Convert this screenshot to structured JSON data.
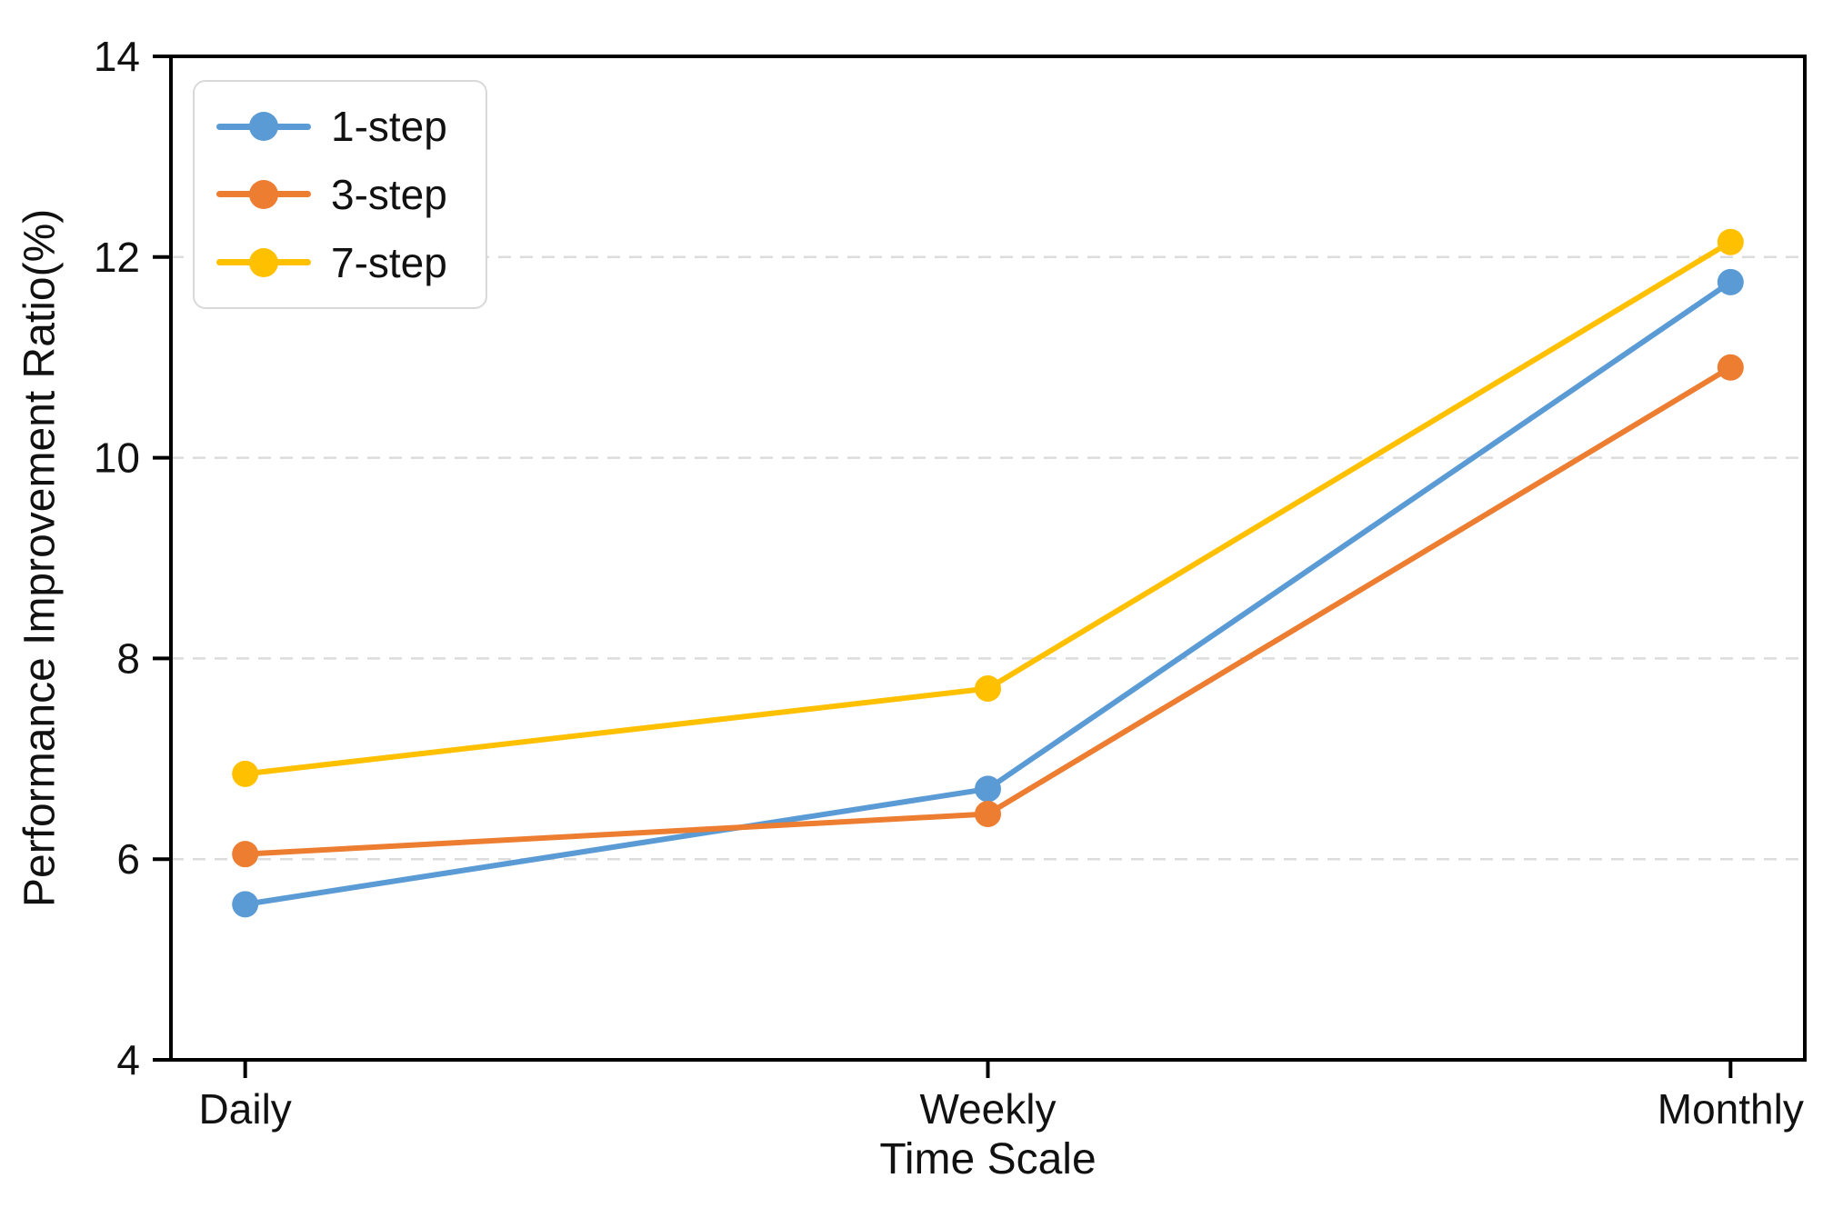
{
  "chart_data": {
    "type": "line",
    "title": "",
    "xlabel": "Time Scale",
    "ylabel": "Performance Improvement Ratio(%)",
    "categories": [
      "Daily",
      "Weekly",
      "Monthly"
    ],
    "series": [
      {
        "name": "1-step",
        "color": "#5B9BD5",
        "values": [
          5.55,
          6.7,
          11.75
        ]
      },
      {
        "name": "3-step",
        "color": "#ED7D31",
        "values": [
          6.05,
          6.45,
          10.9
        ]
      },
      {
        "name": "7-step",
        "color": "#FFC000",
        "values": [
          6.85,
          7.7,
          12.15
        ]
      }
    ],
    "ylim": [
      4,
      14
    ],
    "yticks": [
      4,
      6,
      8,
      10,
      12,
      14
    ],
    "grid": "horizontal-dashed",
    "grid_color": "#dcdcdc",
    "axis_color": "#000000",
    "legend_position": "upper-left"
  }
}
